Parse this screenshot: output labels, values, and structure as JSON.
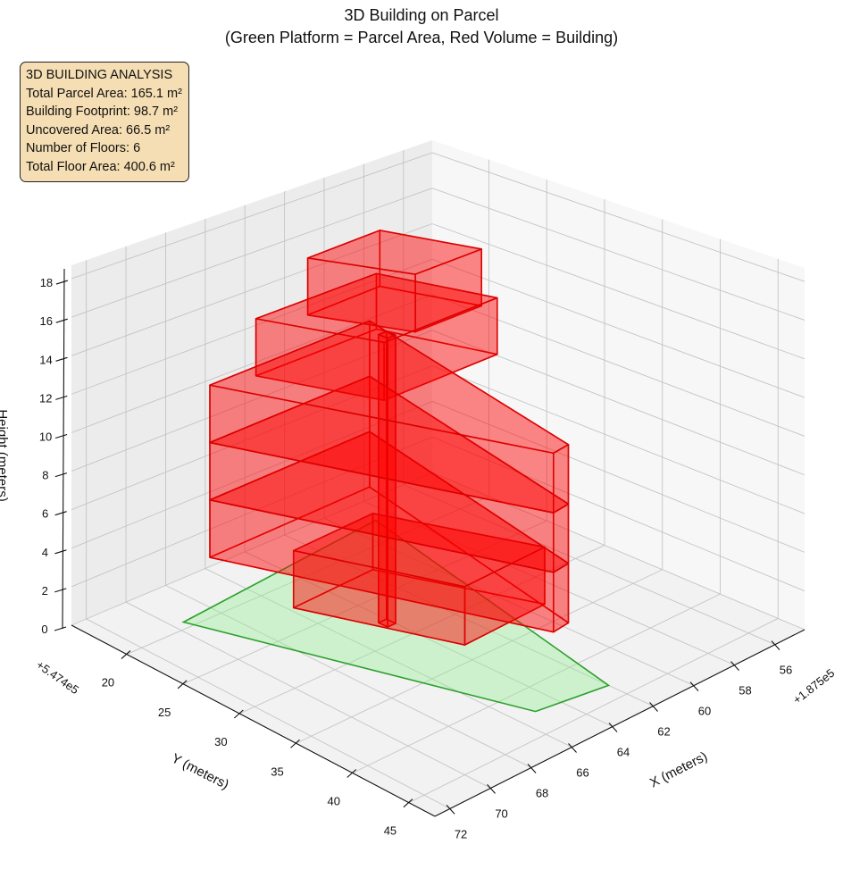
{
  "title": {
    "line1": "3D Building on Parcel",
    "line2": "(Green Platform = Parcel Area, Red Volume = Building)"
  },
  "infobox": {
    "heading": "3D BUILDING ANALYSIS",
    "lines": [
      "Total Parcel Area: 165.1 m²",
      "Building Footprint: 98.7 m²",
      "Uncovered Area: 66.5 m²",
      "Number of Floors: 6",
      "Total Floor Area: 400.6 m²"
    ]
  },
  "chart_data": {
    "type": "3d-surface-polygons",
    "title": "3D Building on Parcel\n(Green Platform = Parcel Area, Red Volume = Building)",
    "xlabel": "X (meters)",
    "ylabel": "Y (meters)",
    "zlabel": "Height (meters)",
    "x_offset_label": "+1.875e5",
    "y_offset_label": "+5.474e5",
    "xlim": [
      54.55,
      72.75
    ],
    "ylim": [
      15.1,
      47.3
    ],
    "zlim": [
      0,
      18.7
    ],
    "x_ticks": [
      "56",
      "58",
      "60",
      "62",
      "64",
      "66",
      "68",
      "70",
      "72"
    ],
    "y_ticks": [
      "20",
      "25",
      "30",
      "35",
      "40",
      "45"
    ],
    "z_ticks": [
      "0",
      "2",
      "4",
      "6",
      "8",
      "10",
      "12",
      "14",
      "16",
      "18"
    ],
    "grid": true,
    "colors": {
      "parcel_fill": "#d4f0d2",
      "parcel_edge": "#2ca02c",
      "building_fill": "#ff0000",
      "building_edge": "#dd0000"
    },
    "parcel": {
      "name": "Parcel Area",
      "polygon": [
        [
          69.5,
          19.3
        ],
        [
          58.8,
          17.5
        ],
        [
          62.0,
          43.4
        ],
        [
          65.1,
          42.5
        ]
      ]
    },
    "building": [
      {
        "floor": 1,
        "z": [
          0,
          3
        ],
        "footprint": [
          [
            65.8,
            22.5
          ],
          [
            61.65,
            22.2
          ],
          [
            59.25,
            33.0
          ],
          [
            63.4,
            33.3
          ]
        ]
      },
      {
        "floor": 2,
        "z": [
          3,
          6
        ],
        "footprint": [
          [
            68.4,
            19.7
          ],
          [
            60.2,
            19.4
          ],
          [
            62.8,
            41.3
          ],
          [
            63.65,
            41.5
          ]
        ]
      },
      {
        "floor": 3,
        "z": [
          6,
          9
        ],
        "footprint": [
          [
            68.4,
            19.7
          ],
          [
            60.2,
            19.4
          ],
          [
            62.8,
            41.3
          ],
          [
            63.65,
            41.5
          ]
        ]
      },
      {
        "floor": 4,
        "z": [
          9,
          12
        ],
        "footprint": [
          [
            68.4,
            19.7
          ],
          [
            60.2,
            19.4
          ],
          [
            62.8,
            41.3
          ],
          [
            63.65,
            41.5
          ]
        ]
      },
      {
        "floor": 5,
        "z": [
          12,
          15
        ],
        "footprint": [
          [
            66.6,
            20.6
          ],
          [
            60.55,
            20.6
          ],
          [
            59.1,
            28.6
          ],
          [
            64.75,
            28.6
          ]
        ]
      },
      {
        "floor": 6,
        "z": [
          15,
          18
        ],
        "footprint": [
          [
            65.0,
            22.35
          ],
          [
            61.3,
            22.2
          ],
          [
            60.0,
            28.8
          ],
          [
            63.3,
            28.8
          ]
        ]
      },
      {
        "floor": "core",
        "z": [
          0,
          15
        ],
        "footprint": [
          [
            64.4,
            27.5
          ],
          [
            64.0,
            27.5
          ],
          [
            64.0,
            28.3
          ],
          [
            64.4,
            28.3
          ]
        ]
      }
    ]
  }
}
